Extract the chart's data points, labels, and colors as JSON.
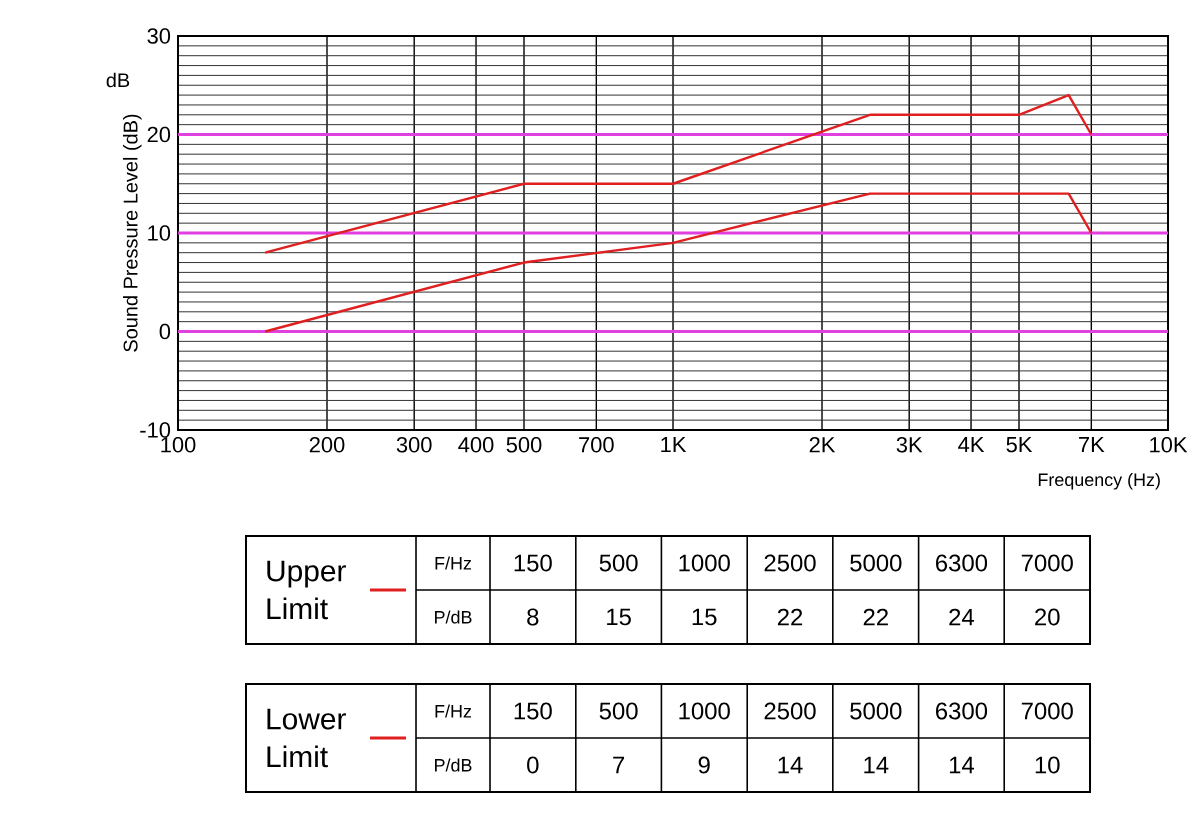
{
  "chart_data": {
    "type": "line",
    "xlabel": "Frequency (Hz)",
    "ylabel": "Sound Pressure Level (dB)",
    "annotations": [
      "dB",
      "F/Hz",
      "P/dB",
      "150",
      "500",
      "1000",
      "2500",
      "5000",
      "6300",
      "7000",
      "8",
      "15",
      "15",
      "22",
      "22",
      "24",
      "20",
      "0",
      "7",
      "9",
      "14",
      "14",
      "14",
      "10"
    ],
    "log": "x",
    "xlim": [
      100,
      10000
    ],
    "xticks": [
      100,
      200,
      300,
      400,
      500,
      700,
      {
        "value": 1000,
        "label": "1K"
      },
      {
        "value": 2000,
        "label": "2K"
      },
      {
        "value": 3000,
        "label": "3K"
      },
      {
        "value": 4000,
        "label": "4K"
      },
      {
        "value": 5000,
        "label": "5K"
      },
      {
        "value": 7000,
        "label": "7K"
      },
      {
        "value": 10000,
        "label": "10K"
      }
    ],
    "ylim": [
      -10,
      30
    ],
    "yticks": [
      -10,
      0,
      10,
      20,
      30
    ],
    "grid": true,
    "legend": "bottom",
    "marker": "none",
    "line_style": "solid",
    "series": [
      {
        "name": "Upper Limit",
        "color": "#e02020",
        "x": [
          150,
          500,
          1000,
          2500,
          5000,
          6300,
          7000
        ],
        "values": [
          8,
          15,
          15,
          22,
          22,
          24,
          20
        ]
      },
      {
        "name": "Lower Limit",
        "color": "#e02020",
        "x": [
          150,
          500,
          1000,
          2500,
          5000,
          6300,
          7000
        ],
        "values": [
          0,
          7,
          9,
          14,
          14,
          14,
          10
        ]
      }
    ],
    "ref_lines": [
      {
        "axis": "y",
        "value": 0,
        "color": "#e040e0"
      },
      {
        "axis": "y",
        "value": 10,
        "color": "#e040e0"
      },
      {
        "axis": "y",
        "value": 20,
        "color": "#e040e0"
      }
    ]
  }
}
